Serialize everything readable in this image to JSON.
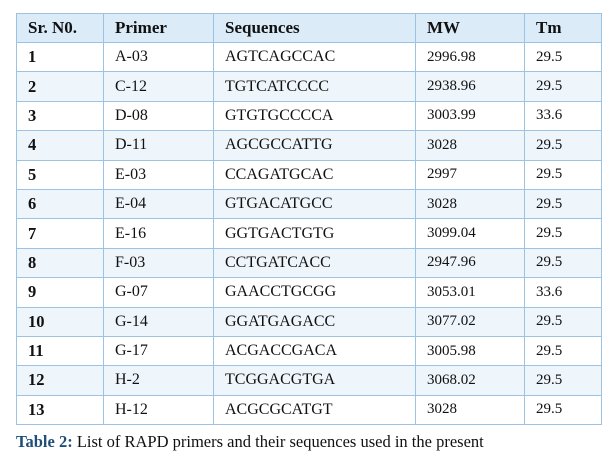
{
  "table": {
    "headers": [
      "Sr. N0.",
      "Primer",
      "Sequences",
      "MW",
      "Tm"
    ],
    "rows": [
      [
        "1",
        "A-03",
        "AGTCAGCCAC",
        "2996.98",
        "29.5"
      ],
      [
        "2",
        "C-12",
        "TGTCATCCCC",
        "2938.96",
        "29.5"
      ],
      [
        "3",
        "D-08",
        "GTGTGCCCCA",
        "3003.99",
        "33.6"
      ],
      [
        "4",
        "D-11",
        "AGCGCCATTG",
        "3028",
        "29.5"
      ],
      [
        "5",
        "E-03",
        "CCAGATGCAC",
        "2997",
        "29.5"
      ],
      [
        "6",
        "E-04",
        "GTGACATGCC",
        "3028",
        "29.5"
      ],
      [
        "7",
        "E-16",
        "GGTGACTGTG",
        "3099.04",
        "29.5"
      ],
      [
        "8",
        "F-03",
        "CCTGATCACC",
        "2947.96",
        "29.5"
      ],
      [
        "9",
        "G-07",
        "GAACCTGCGG",
        "3053.01",
        "33.6"
      ],
      [
        "10",
        "G-14",
        "GGATGAGACC",
        "3077.02",
        "29.5"
      ],
      [
        "11",
        "G-17",
        "ACGACCGACA",
        "3005.98",
        "29.5"
      ],
      [
        "12",
        "H-2",
        "TCGGACGTGA",
        "3068.02",
        "29.5"
      ],
      [
        "13",
        "H-12",
        "ACGCGCATGT",
        "3028",
        "29.5"
      ]
    ]
  },
  "caption": {
    "label": "Table 2:",
    "text": " List of RAPD primers and their sequences used in the present"
  },
  "colors": {
    "header_bg": "#dcebf8",
    "stripe_bg": "#eef5fb",
    "border": "#9cc3e4",
    "caption_label": "#1f4e79"
  }
}
